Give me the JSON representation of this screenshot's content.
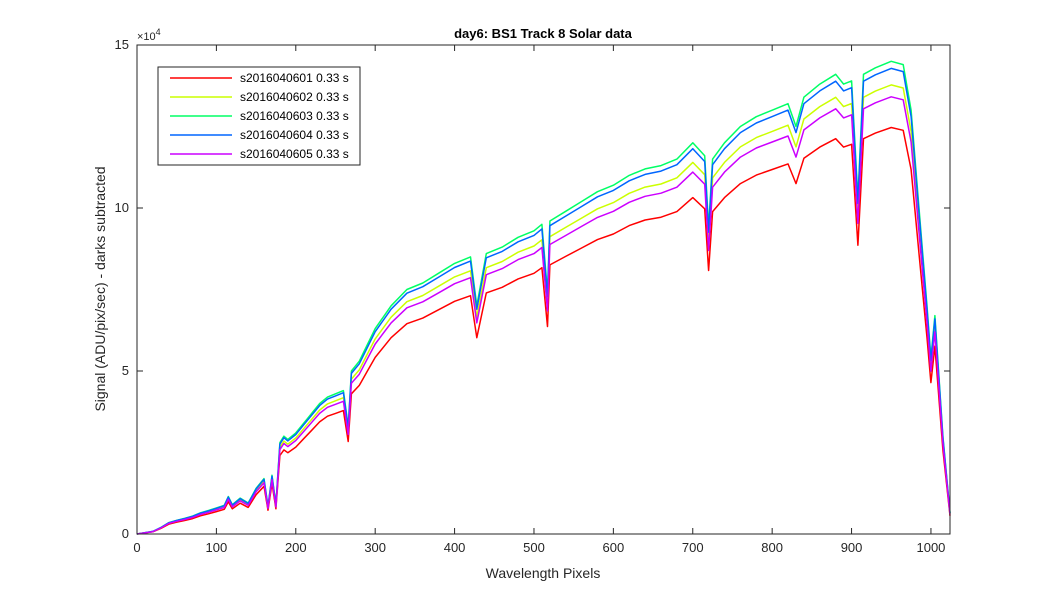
{
  "chart_data": {
    "type": "line",
    "title": "day6: BS1  Track 8 Solar data",
    "xlabel": "Wavelength Pixels",
    "ylabel": "Signal (ADU/pix/sec) - darks subtracted",
    "xlim": [
      0,
      1024
    ],
    "ylim": [
      0,
      150000
    ],
    "y_exponent_label": "×10",
    "y_exponent_power": "4",
    "x_ticks": [
      "0",
      "100",
      "200",
      "300",
      "400",
      "500",
      "600",
      "700",
      "800",
      "900",
      "1000"
    ],
    "y_ticks": [
      "0",
      "5",
      "10",
      "15"
    ],
    "grid": false,
    "legend_position": "top-left",
    "x": [
      0,
      20,
      30,
      40,
      50,
      60,
      70,
      80,
      90,
      100,
      110,
      115,
      120,
      130,
      140,
      150,
      160,
      165,
      170,
      175,
      180,
      185,
      190,
      200,
      210,
      220,
      230,
      240,
      250,
      260,
      266,
      270,
      280,
      290,
      300,
      320,
      340,
      360,
      380,
      400,
      420,
      428,
      440,
      460,
      480,
      500,
      510,
      517,
      520,
      540,
      560,
      580,
      600,
      620,
      640,
      660,
      680,
      700,
      715,
      720,
      725,
      740,
      760,
      780,
      800,
      820,
      830,
      840,
      860,
      880,
      890,
      900,
      908,
      915,
      930,
      950,
      965,
      975,
      985,
      995,
      1000,
      1005,
      1015,
      1024
    ],
    "reference_series": [
      0,
      800,
      2000,
      3500,
      4200,
      4800,
      5500,
      6500,
      7200,
      8000,
      8800,
      11500,
      9000,
      11000,
      9500,
      14000,
      17000,
      8500,
      18000,
      9000,
      28000,
      30000,
      29000,
      31000,
      34000,
      37000,
      40000,
      42000,
      43000,
      44000,
      33000,
      50000,
      53000,
      58000,
      63000,
      70000,
      75000,
      77000,
      80000,
      83000,
      85000,
      70000,
      86000,
      88000,
      91000,
      93000,
      95000,
      74000,
      96000,
      99000,
      102000,
      105000,
      107000,
      110000,
      112000,
      113000,
      115000,
      120000,
      116000,
      94000,
      115000,
      120000,
      125000,
      128000,
      130000,
      132000,
      125000,
      134000,
      138000,
      141000,
      138000,
      139000,
      103000,
      141000,
      143000,
      145000,
      144000,
      130000,
      100000,
      70000,
      54000,
      67000,
      30000,
      6500
    ],
    "series": [
      {
        "name": "s2016040601 0.33 s",
        "color": "#ff0000",
        "scale": 0.86
      },
      {
        "name": "s2016040602 0.33 s",
        "color": "#ccff00",
        "scale": 0.95
      },
      {
        "name": "s2016040603 0.33 s",
        "color": "#00ff66",
        "scale": 1.0
      },
      {
        "name": "s2016040604 0.33 s",
        "color": "#0066ff",
        "scale": 0.985
      },
      {
        "name": "s2016040605 0.33 s",
        "color": "#cc00ff",
        "scale": 0.925
      }
    ]
  }
}
